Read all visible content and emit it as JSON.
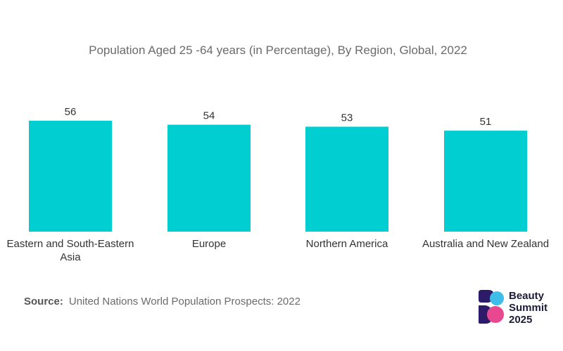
{
  "chart_data": {
    "type": "bar",
    "title": "Population Aged 25 -64 years (in Percentage), By Region, Global, 2022",
    "categories": [
      "Eastern and South-Eastern Asia",
      "Europe",
      "Northern America",
      "Australia and New Zealand"
    ],
    "values": [
      56,
      54,
      53,
      51
    ],
    "xlabel": "",
    "ylabel": "",
    "ylim": [
      0,
      56
    ],
    "grid": false,
    "bar_color": "#00ced1"
  },
  "source": {
    "label": "Source:",
    "text": "United Nations World Population Prospects: 2022"
  },
  "logo": {
    "line1": "Beauty",
    "line2": "Summit",
    "line3": "2025",
    "colors": [
      "#2d1b69",
      "#e8488f",
      "#3dbde8"
    ]
  }
}
